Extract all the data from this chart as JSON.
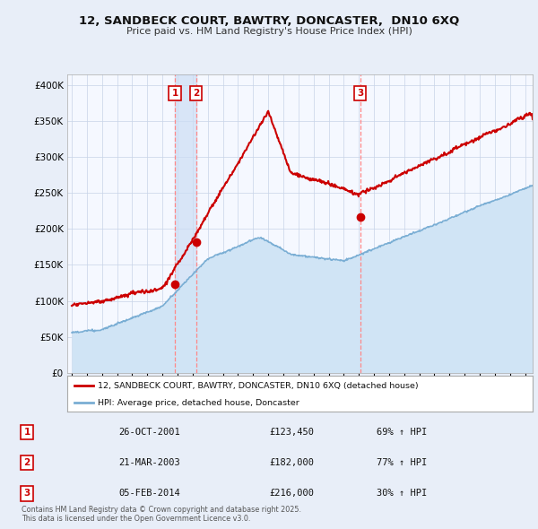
{
  "title": "12, SANDBECK COURT, BAWTRY, DONCASTER,  DN10 6XQ",
  "subtitle": "Price paid vs. HM Land Registry's House Price Index (HPI)",
  "ytick_values": [
    0,
    50000,
    100000,
    150000,
    200000,
    250000,
    300000,
    350000,
    400000
  ],
  "ylim": [
    0,
    415000
  ],
  "xlim_start": 1994.7,
  "xlim_end": 2025.5,
  "transactions": [
    {
      "num": 1,
      "date": "26-OCT-2001",
      "price": 123450,
      "pct": "69%",
      "dir": "↑",
      "year": 2001.82
    },
    {
      "num": 2,
      "date": "21-MAR-2003",
      "price": 182000,
      "pct": "77%",
      "dir": "↑",
      "year": 2003.22
    },
    {
      "num": 3,
      "date": "05-FEB-2014",
      "price": 216000,
      "pct": "30%",
      "dir": "↑",
      "year": 2014.09
    }
  ],
  "legend_line1": "12, SANDBECK COURT, BAWTRY, DONCASTER, DN10 6XQ (detached house)",
  "legend_line2": "HPI: Average price, detached house, Doncaster",
  "footnote": "Contains HM Land Registry data © Crown copyright and database right 2025.\nThis data is licensed under the Open Government Licence v3.0.",
  "hpi_color": "#7aaed4",
  "hpi_fill_color": "#d0e4f5",
  "price_color": "#cc0000",
  "vline_color": "#ff8888",
  "shade_color": "#ccddf5",
  "box_border_color": "#cc0000",
  "background_color": "#e8eef8",
  "plot_bg": "#f5f8ff"
}
